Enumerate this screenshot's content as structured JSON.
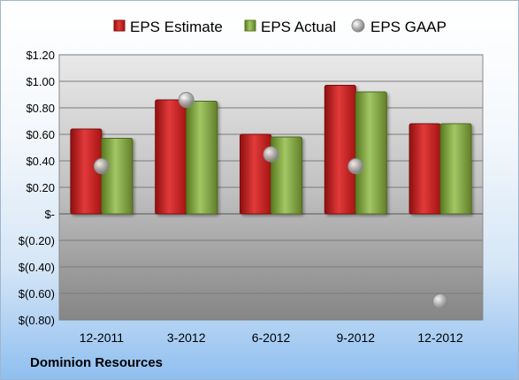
{
  "chart_data": {
    "type": "bar",
    "title": "",
    "xlabel": "",
    "ylabel": "",
    "categories": [
      "12-2011",
      "3-2012",
      "6-2012",
      "9-2012",
      "12-2012"
    ],
    "series": [
      {
        "name": "EPS Estimate",
        "kind": "bar",
        "color": "#cc1f1f",
        "values": [
          0.64,
          0.86,
          0.6,
          0.97,
          0.68
        ]
      },
      {
        "name": "EPS Actual",
        "kind": "bar",
        "color": "#7ea63b",
        "values": [
          0.57,
          0.85,
          0.58,
          0.92,
          0.68
        ]
      },
      {
        "name": "EPS GAAP",
        "kind": "marker",
        "color": "#9a9a9a",
        "values": [
          0.36,
          0.86,
          0.45,
          0.36,
          -0.66
        ]
      }
    ],
    "ylim": [
      -0.8,
      1.2
    ],
    "yticks": [
      1.2,
      1.0,
      0.8,
      0.6,
      0.4,
      0.2,
      0,
      -0.2,
      -0.4,
      -0.6,
      -0.8
    ],
    "ytick_labels": [
      "$1.20",
      "$1.00",
      "$0.80",
      "$0.60",
      "$0.40",
      "$0.20",
      "$-",
      "$(0.20)",
      "$(0.40)",
      "$(0.60)",
      "$(0.80)"
    ],
    "grid": true,
    "legend_position": "top"
  },
  "footer": {
    "company": "Dominion Resources"
  }
}
